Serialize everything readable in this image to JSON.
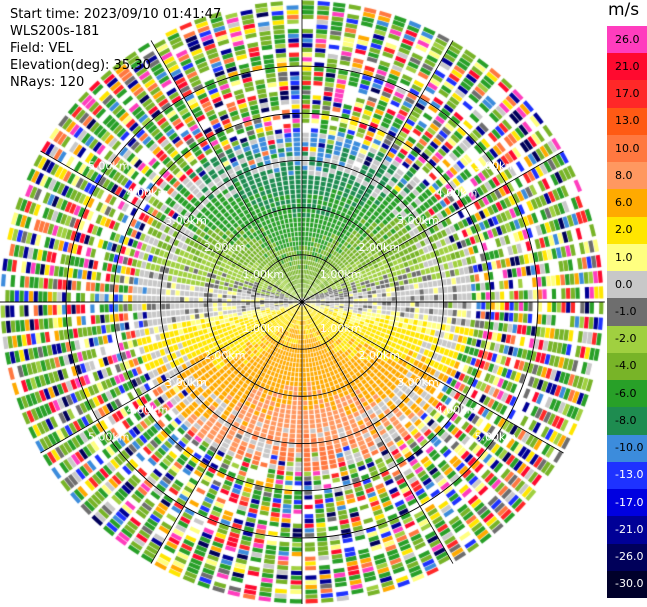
{
  "info": {
    "start_time": "Start time: 2023/09/10 01:41:47",
    "instrument": "WLS200s-181",
    "field": "Field: VEL",
    "elevation": "Elevation(deg): 35.30",
    "nrays": "NRays: 120"
  },
  "chart_data": {
    "type": "ppi-polar-heatmap",
    "field": "VEL",
    "units": "m/s",
    "n_rays": 120,
    "range_rings_km": [
      1,
      2,
      3,
      4,
      5
    ],
    "ring_labels": [
      "1.00km",
      "2.00km",
      "3.00km",
      "4.00km",
      "5.00km"
    ],
    "max_range_km": 6.4,
    "colorbar": {
      "title": "m/s",
      "ticks": [
        "26.0",
        "21.0",
        "17.0",
        "13.0",
        "10.0",
        "8.0",
        "6.0",
        "2.0",
        "1.0",
        "0.0",
        "-1.0",
        "-2.0",
        "-4.0",
        "-6.0",
        "-8.0",
        "-10.0",
        "-13.0",
        "-17.0",
        "-21.0",
        "-26.0",
        "-30.0"
      ],
      "colors": [
        "#ff3dbe",
        "#ff0a2f",
        "#ff2828",
        "#ff5a14",
        "#ff7840",
        "#ff9860",
        "#ffaa00",
        "#ffe600",
        "#ffff80",
        "#c8c8c8",
        "#6e6e6e",
        "#a0d040",
        "#78b428",
        "#28a028",
        "#1e8c50",
        "#3c8cdc",
        "#1e32ff",
        "#0000e0",
        "#000096",
        "#00005a",
        "#00002a"
      ]
    },
    "near_field_pattern": "negative velocities toward north (green/blue), positive velocities toward south (yellow/orange), noisy speckle beyond ~4 km"
  }
}
